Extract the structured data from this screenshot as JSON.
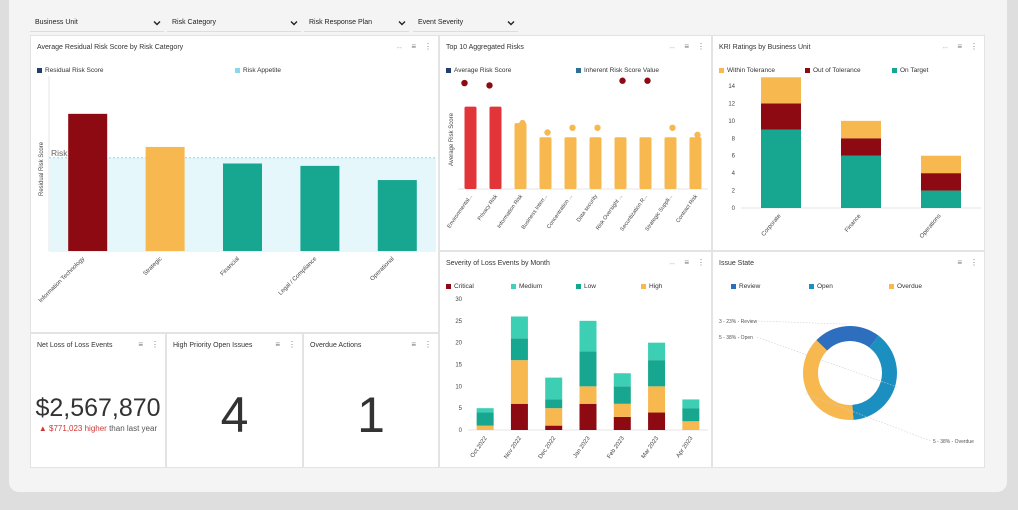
{
  "filters": [
    {
      "label": "Business Unit"
    },
    {
      "label": "Risk Category"
    },
    {
      "label": "Risk Response Plan"
    },
    {
      "label": "Event Severity"
    }
  ],
  "colors": {
    "dark_red": "#8d0a12",
    "orange": "#f7b84f",
    "teal": "#17a68f",
    "red": "#e2353a",
    "navy": "#233d6e",
    "steel": "#2f6f94",
    "blue": "#2d6fbe",
    "sky_blue": "#1b8fc0"
  },
  "panels": {
    "avg_residual": {
      "title": "Average Residual Risk Score by Risk Category",
      "legend": [
        "Residual Risk Score",
        "Risk Appetite"
      ]
    },
    "top10": {
      "title": "Top 10 Aggregated Risks",
      "legend": [
        "Average Risk Score",
        "Inherent Risk Score Value"
      ]
    },
    "kri": {
      "title": "KRI Ratings by Business Unit",
      "legend": [
        "Within Tolerance",
        "Out of Tolerance",
        "On Target"
      ]
    },
    "severity": {
      "title": "Severity of Loss Events by Month",
      "legend": [
        "Critical",
        "Medium",
        "Low",
        "High"
      ]
    },
    "issue_state": {
      "title": "Issue State",
      "legend": [
        "Review",
        "Open",
        "Overdue"
      ]
    },
    "net_loss": {
      "title": "Net Loss of Loss Events",
      "value": "$2,567,870",
      "delta": "▲ $771,023 higher",
      "suffix": "than last year"
    },
    "high_priority": {
      "title": "High Priority Open Issues",
      "value": "4"
    },
    "overdue": {
      "title": "Overdue Actions",
      "value": "1"
    }
  },
  "chart_data": [
    {
      "type": "bar",
      "title": "Average Residual Risk Score by Risk Category",
      "ylabel": "Residual Risk Score",
      "categories": [
        "Information Technology",
        "Strategic",
        "Financial",
        "Legal / Compliance",
        "Operational"
      ],
      "values": [
        2.9,
        2.2,
        1.85,
        1.8,
        1.5
      ],
      "ylim": [
        0,
        3.7
      ],
      "appetite": 1.97,
      "appetite_label": "Risk Appetite"
    },
    {
      "type": "bar",
      "title": "Top 10 Aggregated Risks",
      "ylabel": "Average Risk Score",
      "categories": [
        "Environmental...",
        "Privacy Risk",
        "Information Risk",
        "Business Interr...",
        "Concentration ...",
        "Data security",
        "Risk Oversight ...",
        "Securitization R...",
        "Strategic Suppli...",
        "Contract Risk"
      ],
      "series": [
        {
          "name": "Average Risk Score",
          "values": [
            3.5,
            3.5,
            2.8,
            2.2,
            2.2,
            2.2,
            2.2,
            2.2,
            2.2,
            2.2
          ]
        },
        {
          "name": "Inherent Risk Score Value",
          "values": [
            4.5,
            4.4,
            2.8,
            2.4,
            2.6,
            2.6,
            4.6,
            4.6,
            2.6,
            2.3
          ]
        }
      ],
      "ylim": [
        0,
        4.8
      ]
    },
    {
      "type": "bar",
      "title": "KRI Ratings by Business Unit",
      "categories": [
        "Corporate",
        "Finance",
        "Operations"
      ],
      "series": [
        {
          "name": "On Target",
          "values": [
            9,
            6,
            2
          ]
        },
        {
          "name": "Out of Tolerance",
          "values": [
            3,
            2,
            2
          ]
        },
        {
          "name": "Within Tolerance",
          "values": [
            3,
            2,
            2
          ]
        }
      ],
      "yticks": [
        0,
        2,
        4,
        6,
        8,
        10,
        12,
        14
      ],
      "ylim": [
        0,
        15
      ]
    },
    {
      "type": "bar",
      "title": "Severity of Loss Events by Month",
      "categories": [
        "Oct 2022",
        "Nov 2022",
        "Dec 2022",
        "Jan 2023",
        "Feb 2023",
        "Mar 2023",
        "Apr 2023"
      ],
      "series": [
        {
          "name": "Critical",
          "values": [
            0,
            6,
            1,
            6,
            3,
            4,
            0
          ]
        },
        {
          "name": "High",
          "values": [
            1,
            10,
            4,
            4,
            3,
            6,
            2
          ]
        },
        {
          "name": "Low",
          "values": [
            3,
            5,
            2,
            8,
            4,
            6,
            3
          ]
        },
        {
          "name": "Medium",
          "values": [
            1,
            5,
            5,
            7,
            3,
            4,
            2
          ]
        }
      ],
      "yticks": [
        0,
        5,
        10,
        15,
        20,
        25,
        30
      ],
      "ylim": [
        0,
        30
      ]
    },
    {
      "type": "pie",
      "title": "Issue State",
      "categories": [
        "Review",
        "Open",
        "Overdue"
      ],
      "values": [
        3,
        5,
        5
      ],
      "labels": [
        "3 - 23% - Review",
        "5 - 38% - Open",
        "5 - 38% - Overdue"
      ]
    }
  ]
}
